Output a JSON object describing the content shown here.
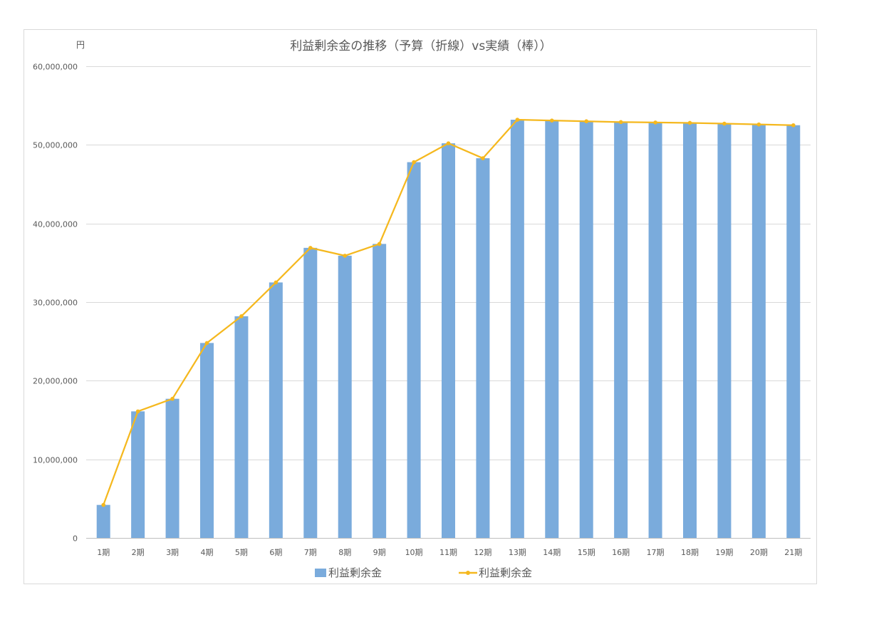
{
  "chart_data": {
    "type": "bar+line",
    "title": "利益剰余金の推移（予算（折線）vs実績（棒））",
    "unit_label": "円",
    "categories": [
      "1期",
      "2期",
      "3期",
      "4期",
      "5期",
      "6期",
      "7期",
      "8期",
      "9期",
      "10期",
      "11期",
      "12期",
      "13期",
      "14期",
      "15期",
      "16期",
      "17期",
      "18期",
      "19期",
      "20期",
      "21期"
    ],
    "series": [
      {
        "name": "利益剰余金",
        "kind": "bar",
        "color": "#7aabdc",
        "values": [
          4200000,
          16100000,
          17700000,
          24800000,
          28200000,
          32500000,
          36900000,
          35900000,
          37400000,
          47800000,
          50200000,
          48300000,
          53200000,
          53100000,
          53000000,
          52900000,
          52850000,
          52800000,
          52700000,
          52600000,
          52500000
        ]
      },
      {
        "name": "利益剰余金",
        "kind": "line",
        "color": "#f5b81e",
        "values": [
          4200000,
          16100000,
          17700000,
          24800000,
          28200000,
          32500000,
          36900000,
          35900000,
          37400000,
          47800000,
          50200000,
          48300000,
          53200000,
          53100000,
          53000000,
          52900000,
          52850000,
          52800000,
          52700000,
          52600000,
          52500000
        ]
      }
    ],
    "ylim": [
      0,
      60000000
    ],
    "yticks": [
      0,
      10000000,
      20000000,
      30000000,
      40000000,
      50000000,
      60000000
    ],
    "ytick_labels": [
      "0",
      "10,000,000",
      "20,000,000",
      "30,000,000",
      "40,000,000",
      "50,000,000",
      "60,000,000"
    ],
    "grid": true,
    "legend_position": "bottom"
  }
}
